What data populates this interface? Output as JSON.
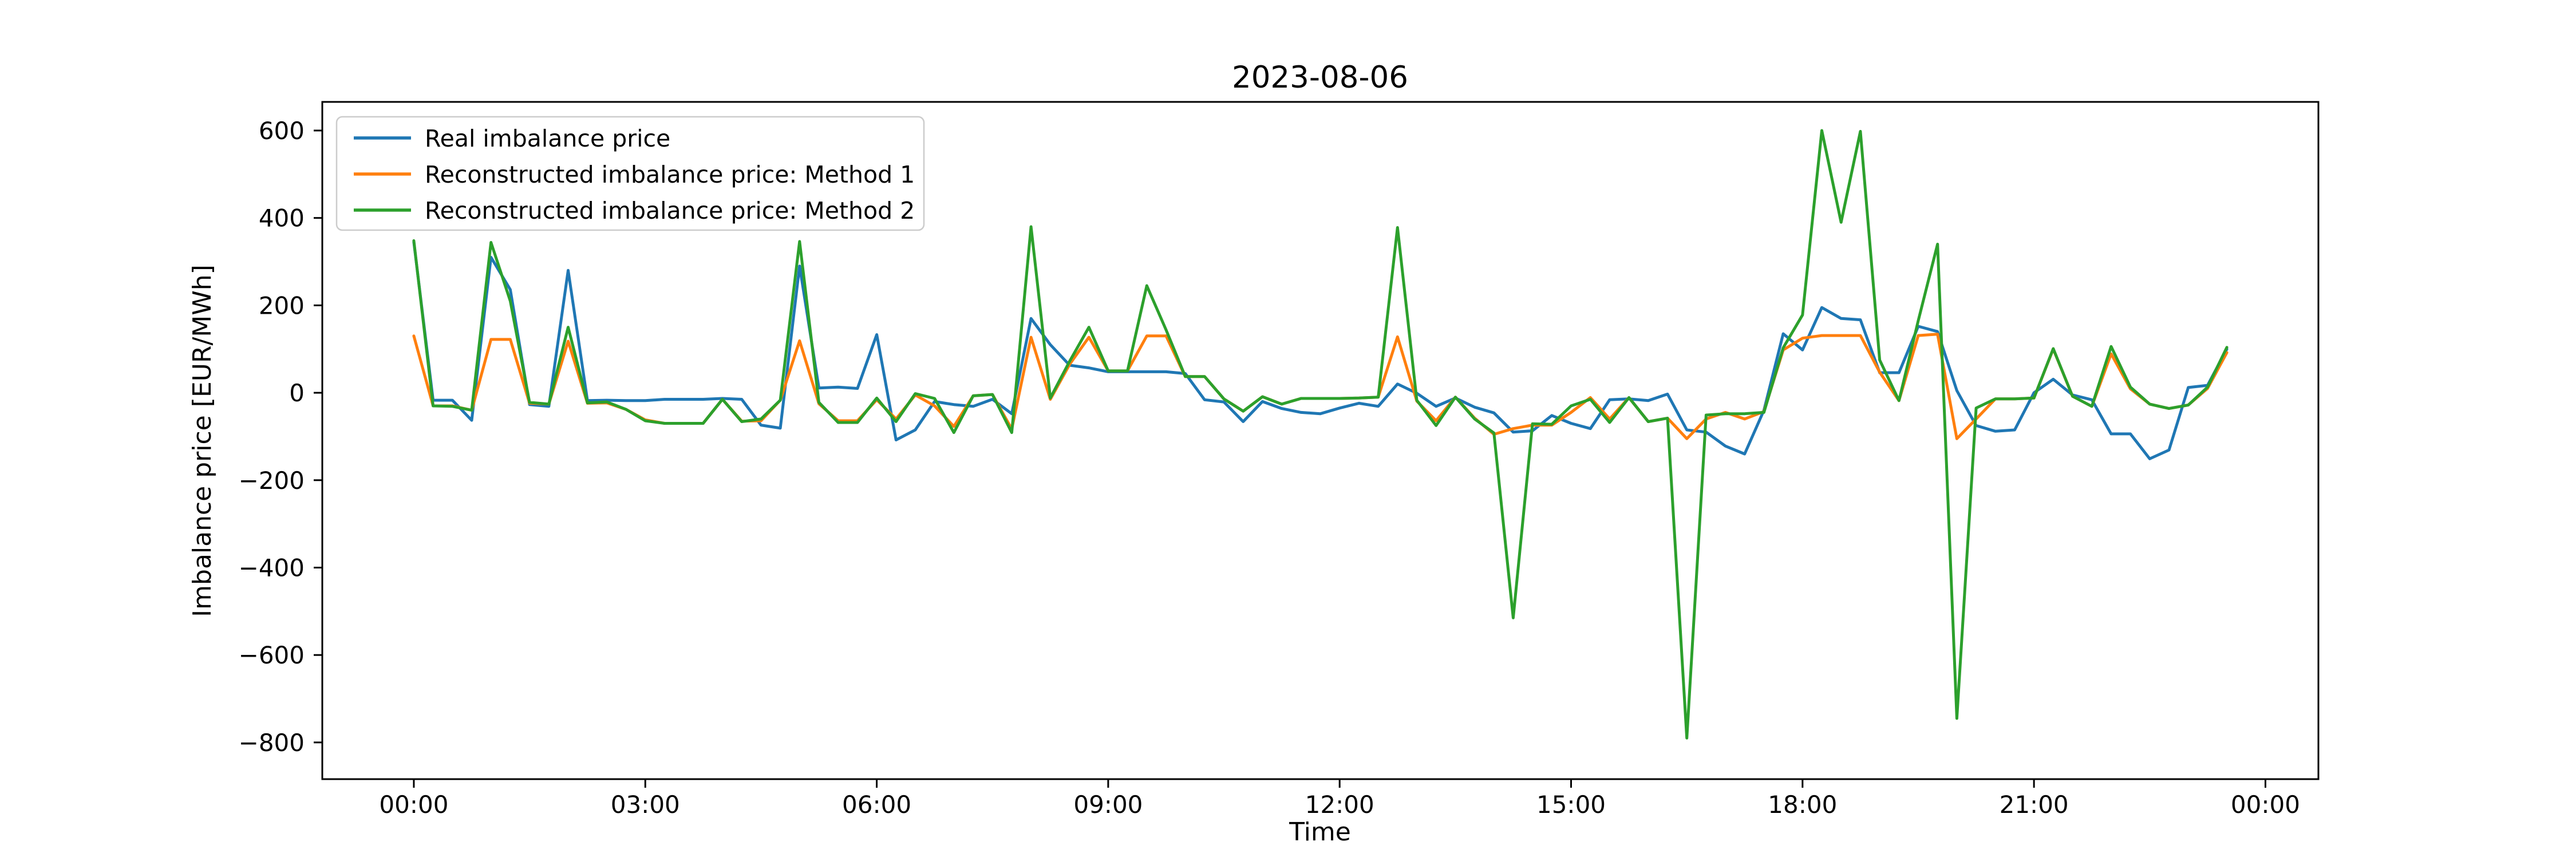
{
  "chart_data": {
    "type": "line",
    "title": "2023-08-06",
    "xlabel": "Time",
    "ylabel": "Imbalance price [EUR/MWh]",
    "legend_position": "upper left",
    "grid": false,
    "x_start": "00:00",
    "x_interval_minutes": 15,
    "x_tick_minutes": [
      0,
      180,
      360,
      540,
      720,
      900,
      1080,
      1260,
      1440
    ],
    "x_tick_labels": [
      "00:00",
      "03:00",
      "06:00",
      "09:00",
      "12:00",
      "15:00",
      "18:00",
      "21:00",
      "00:00"
    ],
    "y_ticks": [
      600,
      400,
      200,
      0,
      -200,
      -400,
      -600,
      -800
    ],
    "ylim": [
      -884,
      665.5
    ],
    "xlim_minutes": [
      -71.2,
      1481.2
    ],
    "series": [
      {
        "name": "Real imbalance price",
        "color": "#1f77b4",
        "values": [
          345,
          -17,
          -17,
          -63,
          310,
          236,
          -27,
          -31,
          280,
          -18,
          -17,
          -18,
          -18,
          -15,
          -15,
          -15,
          -13,
          -15,
          -74,
          -81,
          290,
          11,
          13,
          10,
          133,
          -108,
          -85,
          -20,
          -27,
          -31,
          -15,
          -48,
          170,
          110,
          63,
          57,
          48,
          48,
          48,
          48,
          44,
          -16,
          -21,
          -66,
          -20,
          -36,
          -45,
          -48,
          -35,
          -24,
          -31,
          20,
          -1,
          -31,
          -12,
          -33,
          -46,
          -90,
          -87,
          -52,
          -70,
          -82,
          -16,
          -14,
          -18,
          -3,
          -85,
          -90,
          -122,
          -140,
          -40,
          135,
          98,
          195,
          170,
          167,
          46,
          46,
          152,
          140,
          5,
          -75,
          -88,
          -85,
          0,
          31,
          -5,
          -16,
          -94,
          -94,
          -151,
          -131,
          12,
          17,
          100
        ]
      },
      {
        "name": "Reconstructed imbalance price: Method 1",
        "color": "#ff7f0e",
        "values": [
          130,
          -30,
          -30,
          -40,
          122,
          122,
          -24,
          -26,
          118,
          -24,
          -23,
          -38,
          -62,
          -70,
          -70,
          -70,
          -15,
          -65,
          -64,
          -17,
          119,
          -25,
          -64,
          -64,
          -16,
          -60,
          -5,
          -30,
          -77,
          -7,
          -4,
          -83,
          127,
          -15,
          65,
          127,
          50,
          50,
          130,
          130,
          37,
          37,
          -14,
          -42,
          -9,
          -26,
          -13,
          -13,
          -13,
          -12,
          -10,
          128,
          -19,
          -64,
          -10,
          -58,
          -95,
          -82,
          -74,
          -74,
          -45,
          -11,
          -60,
          -11,
          -66,
          -58,
          -105,
          -60,
          -45,
          -60,
          -43,
          98,
          125,
          131,
          131,
          131,
          47,
          -18,
          131,
          134,
          -105,
          -60,
          -14,
          -14,
          -12,
          100,
          -8,
          -31,
          89,
          9,
          -26,
          -36,
          -28,
          10,
          92
        ]
      },
      {
        "name": "Reconstructed imbalance price: Method 2",
        "color": "#2ca02c",
        "values": [
          348,
          -30,
          -31,
          -40,
          344,
          210,
          -22,
          -26,
          150,
          -23,
          -21,
          -38,
          -64,
          -70,
          -70,
          -70,
          -15,
          -66,
          -60,
          -17,
          346,
          -22,
          -68,
          -68,
          -12,
          -66,
          -2,
          -13,
          -91,
          -7,
          -4,
          -91,
          380,
          -12,
          72,
          150,
          50,
          50,
          245,
          144,
          37,
          37,
          -14,
          -42,
          -9,
          -26,
          -13,
          -13,
          -13,
          -12,
          -10,
          378,
          -17,
          -75,
          -10,
          -60,
          -92,
          -515,
          -71,
          -72,
          -30,
          -15,
          -68,
          -11,
          -66,
          -58,
          -790,
          -51,
          -48,
          -48,
          -45,
          103,
          178,
          600,
          390,
          598,
          75,
          -18,
          165,
          340,
          -745,
          -35,
          -14,
          -14,
          -12,
          101,
          -8,
          -31,
          106,
          13,
          -26,
          -36,
          -28,
          13,
          104
        ]
      }
    ]
  }
}
